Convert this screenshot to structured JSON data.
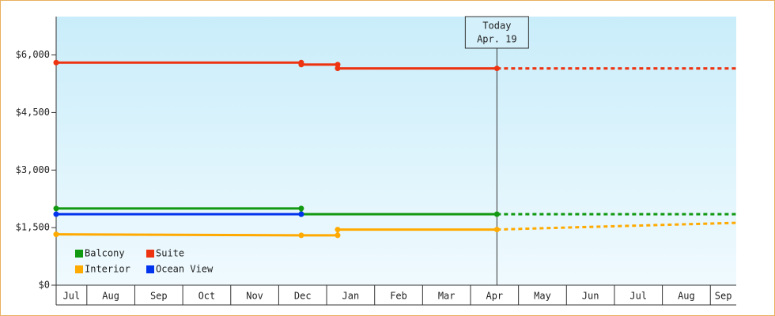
{
  "chart_data": {
    "type": "line",
    "xlim": [
      0.36,
      14.54
    ],
    "xticks": [
      {
        "value": 0.5,
        "label": "Jul"
      },
      {
        "value": 1.5,
        "label": "Aug"
      },
      {
        "value": 2.5,
        "label": "Sep"
      },
      {
        "value": 3.5,
        "label": "Oct"
      },
      {
        "value": 4.5,
        "label": "Nov"
      },
      {
        "value": 5.5,
        "label": "Dec"
      },
      {
        "value": 6.5,
        "label": "Jan"
      },
      {
        "value": 7.5,
        "label": "Feb"
      },
      {
        "value": 8.5,
        "label": "Mar"
      },
      {
        "value": 9.5,
        "label": "Apr"
      },
      {
        "value": 10.5,
        "label": "May"
      },
      {
        "value": 11.5,
        "label": "Jun"
      },
      {
        "value": 12.5,
        "label": "Jul"
      },
      {
        "value": 13.5,
        "label": "Aug"
      },
      {
        "value": 14.5,
        "label": "Sep"
      }
    ],
    "ylim": [
      0,
      7000
    ],
    "yticks": [
      {
        "value": 0,
        "label": "$0"
      },
      {
        "value": 1500,
        "label": "$1,500"
      },
      {
        "value": 3000,
        "label": "$3,000"
      },
      {
        "value": 4500,
        "label": "$4,500"
      },
      {
        "value": 6000,
        "label": "$6,000"
      }
    ],
    "legend": "bottom-left",
    "annotation": {
      "x": 9.55,
      "lines": [
        "Today",
        "Apr. 19"
      ]
    },
    "series": [
      {
        "name": "Balcony",
        "color": "#119911",
        "x": [
          0.36,
          5.47,
          5.47,
          9.55
        ],
        "values": [
          2000,
          2000,
          1850,
          1850
        ],
        "forecast": {
          "x": [
            9.55,
            14.54
          ],
          "values": [
            1850,
            1850
          ]
        }
      },
      {
        "name": "Suite",
        "color": "#ee3311",
        "x": [
          0.36,
          5.47,
          5.47,
          6.23,
          6.23,
          9.55
        ],
        "values": [
          5800,
          5800,
          5750,
          5750,
          5650,
          5650
        ],
        "forecast": {
          "x": [
            9.55,
            14.54
          ],
          "values": [
            5650,
            5650
          ]
        }
      },
      {
        "name": "Interior",
        "color": "#ffaa00",
        "x": [
          0.36,
          5.47,
          6.23,
          6.23,
          9.55
        ],
        "values": [
          1325,
          1300,
          1300,
          1450,
          1450
        ],
        "forecast": {
          "x": [
            9.55,
            14.54
          ],
          "values": [
            1450,
            1625
          ]
        }
      },
      {
        "name": "Ocean View",
        "color": "#0033ee",
        "x": [
          0.36,
          5.47
        ],
        "values": [
          1850,
          1850
        ]
      }
    ]
  }
}
